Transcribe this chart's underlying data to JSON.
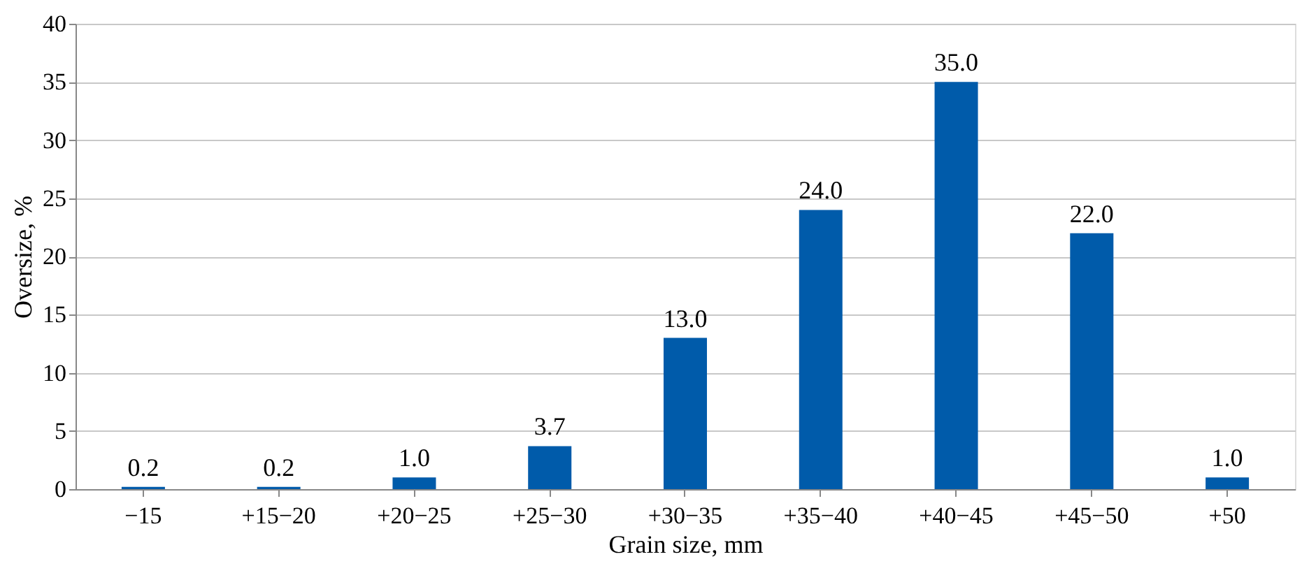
{
  "chart_data": {
    "type": "bar",
    "categories": [
      "−15",
      "+15−20",
      "+20−25",
      "+25−30",
      "+30−35",
      "+35−40",
      "+40−45",
      "+45−50",
      "+50"
    ],
    "values": [
      0.2,
      0.2,
      1.0,
      3.7,
      13.0,
      24.0,
      35.0,
      22.0,
      1.0
    ],
    "value_labels": [
      "0.2",
      "0.2",
      "1.0",
      "3.7",
      "13.0",
      "24.0",
      "35.0",
      "22.0",
      "1.0"
    ],
    "color": "#005baa",
    "xlabel": "Grain size, mm",
    "ylabel": "Oversize, %",
    "ylim": [
      0,
      40
    ],
    "yticks": [
      0,
      5,
      10,
      15,
      20,
      25,
      30,
      35,
      40
    ],
    "grid": "y"
  }
}
